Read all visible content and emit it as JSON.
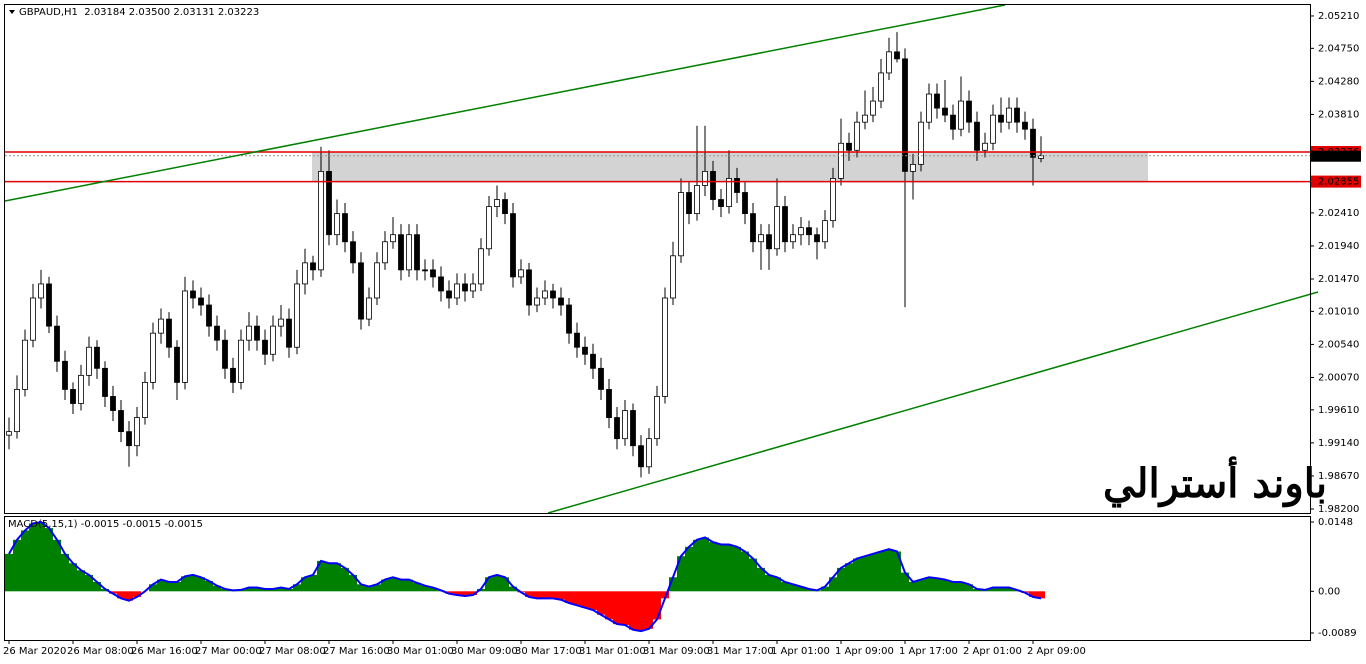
{
  "chart_data": [
    {
      "type": "candlestick",
      "title": "GBPAUD,H1  2.03184 2.03500 2.03131 2.03223",
      "annotation": "باوند أسترالي",
      "annotation_color": "#c00000",
      "ylim": [
        1.98143,
        2.05366
      ],
      "yticks": [
        {
          "value": 2.0521,
          "label": "2.05210"
        },
        {
          "value": 2.0475,
          "label": "2.04750"
        },
        {
          "value": 2.0428,
          "label": "2.04280"
        },
        {
          "value": 2.0381,
          "label": "2.03810"
        },
        {
          "value": 2.0241,
          "label": "2.02410"
        },
        {
          "value": 2.0194,
          "label": "2.01940"
        },
        {
          "value": 2.0147,
          "label": "2.01470"
        },
        {
          "value": 2.0101,
          "label": "2.01010"
        },
        {
          "value": 2.0054,
          "label": "2.00540"
        },
        {
          "value": 2.0007,
          "label": "2.00070"
        },
        {
          "value": 1.9961,
          "label": "1.99610"
        },
        {
          "value": 1.9914,
          "label": "1.99140"
        },
        {
          "value": 1.9867,
          "label": "1.98670"
        },
        {
          "value": 1.982,
          "label": "1.98200"
        }
      ],
      "hlines": [
        2.03276,
        2.02855
      ],
      "hline_color": "#e00000",
      "last_price": 2.03223,
      "zone_color": "#d3d3d3",
      "x_labels": [
        "26 Mar 2020",
        "26 Mar 08:00",
        "26 Mar 16:00",
        "27 Mar 00:00",
        "27 Mar 08:00",
        "27 Mar 16:00",
        "30 Mar 01:00",
        "30 Mar 09:00",
        "30 Mar 17:00",
        "31 Mar 01:00",
        "31 Mar 09:00",
        "31 Mar 17:00",
        "1 Apr 01:00",
        "1 Apr 09:00",
        "1 Apr 17:00",
        "2 Apr 01:00",
        "2 Apr 09:00"
      ],
      "candles": [
        [
          1.9925,
          1.995,
          1.9905,
          1.993
        ],
        [
          1.993,
          2.001,
          1.992,
          1.999
        ],
        [
          1.999,
          2.0075,
          1.998,
          2.006
        ],
        [
          2.006,
          2.014,
          2.005,
          2.012
        ],
        [
          2.012,
          2.016,
          2.0105,
          2.014
        ],
        [
          2.014,
          2.015,
          2.007,
          2.008
        ],
        [
          2.008,
          2.0095,
          2.0015,
          2.003
        ],
        [
          2.003,
          2.0045,
          1.9975,
          1.999
        ],
        [
          1.999,
          2.0,
          1.9955,
          1.997
        ],
        [
          1.997,
          2.0025,
          1.996,
          2.001
        ],
        [
          2.001,
          2.0065,
          1.9995,
          2.005
        ],
        [
          2.005,
          2.006,
          2.0005,
          2.002
        ],
        [
          2.002,
          2.003,
          1.9965,
          1.998
        ],
        [
          1.998,
          1.9995,
          1.9945,
          1.996
        ],
        [
          1.996,
          1.9975,
          1.9915,
          1.993
        ],
        [
          1.993,
          1.9945,
          1.988,
          1.991
        ],
        [
          1.991,
          1.9965,
          1.9895,
          1.995
        ],
        [
          1.995,
          2.0015,
          1.994,
          2.0
        ],
        [
          2.0,
          2.0085,
          1.999,
          2.007
        ],
        [
          2.007,
          2.0105,
          2.0055,
          2.009
        ],
        [
          2.009,
          2.01,
          2.0035,
          2.005
        ],
        [
          2.005,
          2.006,
          1.9975,
          2.0
        ],
        [
          2.0,
          2.015,
          1.999,
          2.013
        ],
        [
          2.013,
          2.0145,
          2.0105,
          2.012
        ],
        [
          2.012,
          2.0135,
          2.0095,
          2.011
        ],
        [
          2.011,
          2.0125,
          2.0065,
          2.008
        ],
        [
          2.008,
          2.0095,
          2.0045,
          2.006
        ],
        [
          2.006,
          2.0075,
          2.0005,
          2.002
        ],
        [
          2.002,
          2.0035,
          1.9985,
          2.0
        ],
        [
          2.0,
          2.0075,
          1.999,
          2.006
        ],
        [
          2.006,
          2.01,
          2.0045,
          2.008
        ],
        [
          2.008,
          2.0095,
          2.0045,
          2.006
        ],
        [
          2.006,
          2.0075,
          2.0025,
          2.004
        ],
        [
          2.004,
          2.0095,
          2.003,
          2.008
        ],
        [
          2.008,
          2.011,
          2.0065,
          2.009
        ],
        [
          2.009,
          2.0105,
          2.0035,
          2.005
        ],
        [
          2.005,
          2.016,
          2.004,
          2.014
        ],
        [
          2.014,
          2.019,
          2.0125,
          2.017
        ],
        [
          2.017,
          2.018,
          2.0145,
          2.016
        ],
        [
          2.016,
          2.0335,
          2.015,
          2.03
        ],
        [
          2.03,
          2.033,
          2.0195,
          2.021
        ],
        [
          2.021,
          2.026,
          2.0195,
          2.024
        ],
        [
          2.024,
          2.0255,
          2.0185,
          2.02
        ],
        [
          2.02,
          2.0215,
          2.0155,
          2.017
        ],
        [
          2.017,
          2.0185,
          2.0075,
          2.009
        ],
        [
          2.009,
          2.0135,
          2.008,
          2.012
        ],
        [
          2.012,
          2.0185,
          2.011,
          2.017
        ],
        [
          2.017,
          2.0215,
          2.016,
          2.02
        ],
        [
          2.02,
          2.0235,
          2.019,
          2.021
        ],
        [
          2.021,
          2.0225,
          2.0145,
          2.016
        ],
        [
          2.016,
          2.0225,
          2.015,
          2.021
        ],
        [
          2.021,
          2.0225,
          2.0145,
          2.016
        ],
        [
          2.016,
          2.0175,
          2.0145,
          2.016
        ],
        [
          2.016,
          2.0175,
          2.0135,
          2.015
        ],
        [
          2.015,
          2.0165,
          2.0115,
          2.013
        ],
        [
          2.013,
          2.0145,
          2.0105,
          2.012
        ],
        [
          2.012,
          2.0155,
          2.011,
          2.014
        ],
        [
          2.014,
          2.0155,
          2.0115,
          2.013
        ],
        [
          2.013,
          2.0155,
          2.012,
          2.014
        ],
        [
          2.014,
          2.0205,
          2.013,
          2.019
        ],
        [
          2.019,
          2.0265,
          2.018,
          2.025
        ],
        [
          2.025,
          2.028,
          2.0235,
          2.026
        ],
        [
          2.026,
          2.027,
          2.0225,
          2.024
        ],
        [
          2.024,
          2.0255,
          2.0135,
          2.015
        ],
        [
          2.015,
          2.0175,
          2.014,
          2.016
        ],
        [
          2.016,
          2.017,
          2.0095,
          2.011
        ],
        [
          2.011,
          2.0135,
          2.01,
          2.012
        ],
        [
          2.012,
          2.0145,
          2.011,
          2.013
        ],
        [
          2.013,
          2.014,
          2.0105,
          2.012
        ],
        [
          2.012,
          2.0135,
          2.0095,
          2.011
        ],
        [
          2.011,
          2.012,
          2.0055,
          2.007
        ],
        [
          2.007,
          2.0085,
          2.0035,
          2.005
        ],
        [
          2.005,
          2.0065,
          2.0025,
          2.004
        ],
        [
          2.004,
          2.0055,
          2.0005,
          2.002
        ],
        [
          2.002,
          2.0035,
          1.9975,
          1.999
        ],
        [
          1.999,
          2.0005,
          1.9935,
          1.995
        ],
        [
          1.995,
          1.9965,
          1.9905,
          1.992
        ],
        [
          1.992,
          1.9975,
          1.991,
          1.996
        ],
        [
          1.996,
          1.997,
          1.9895,
          1.991
        ],
        [
          1.991,
          1.9925,
          1.9865,
          1.988
        ],
        [
          1.988,
          1.9935,
          1.987,
          1.992
        ],
        [
          1.992,
          1.9995,
          1.991,
          1.998
        ],
        [
          1.998,
          2.0135,
          1.997,
          2.012
        ],
        [
          2.012,
          2.02,
          2.011,
          2.018
        ],
        [
          2.018,
          2.029,
          2.017,
          2.027
        ],
        [
          2.027,
          2.0285,
          2.0225,
          2.024
        ],
        [
          2.024,
          2.0365,
          2.023,
          2.028
        ],
        [
          2.028,
          2.0365,
          2.0265,
          2.03
        ],
        [
          2.03,
          2.0315,
          2.0245,
          2.026
        ],
        [
          2.026,
          2.0275,
          2.0235,
          2.025
        ],
        [
          2.025,
          2.033,
          2.024,
          2.029
        ],
        [
          2.029,
          2.0305,
          2.0255,
          2.027
        ],
        [
          2.027,
          2.0285,
          2.0225,
          2.024
        ],
        [
          2.024,
          2.0255,
          2.0185,
          2.02
        ],
        [
          2.02,
          2.0225,
          2.016,
          2.021
        ],
        [
          2.021,
          2.0225,
          2.016,
          2.019
        ],
        [
          2.019,
          2.029,
          2.018,
          2.025
        ],
        [
          2.025,
          2.0265,
          2.0185,
          2.02
        ],
        [
          2.02,
          2.0225,
          2.019,
          2.021
        ],
        [
          2.021,
          2.0235,
          2.0195,
          2.022
        ],
        [
          2.022,
          2.023,
          2.0195,
          2.021
        ],
        [
          2.021,
          2.022,
          2.0175,
          2.02
        ],
        [
          2.02,
          2.0245,
          2.019,
          2.023
        ],
        [
          2.023,
          2.0305,
          2.022,
          2.029
        ],
        [
          2.029,
          2.0375,
          2.028,
          2.034
        ],
        [
          2.034,
          2.0355,
          2.0315,
          2.033
        ],
        [
          2.033,
          2.0385,
          2.032,
          2.037
        ],
        [
          2.037,
          2.0415,
          2.036,
          2.038
        ],
        [
          2.038,
          2.042,
          2.037,
          2.04
        ],
        [
          2.04,
          2.046,
          2.039,
          2.044
        ],
        [
          2.044,
          2.049,
          2.043,
          2.047
        ],
        [
          2.047,
          2.0498,
          2.0455,
          2.046
        ],
        [
          2.046,
          2.0475,
          2.0107,
          2.03
        ],
        [
          2.03,
          2.0325,
          2.026,
          2.031
        ],
        [
          2.031,
          2.0385,
          2.03,
          2.037
        ],
        [
          2.037,
          2.0425,
          2.036,
          2.041
        ],
        [
          2.041,
          2.0425,
          2.0375,
          2.039
        ],
        [
          2.039,
          2.043,
          2.037,
          2.038
        ],
        [
          2.038,
          2.0395,
          2.0345,
          2.036
        ],
        [
          2.036,
          2.0435,
          2.035,
          2.04
        ],
        [
          2.04,
          2.0415,
          2.0355,
          2.037
        ],
        [
          2.037,
          2.0385,
          2.0315,
          2.033
        ],
        [
          2.033,
          2.0355,
          2.032,
          2.034
        ],
        [
          2.034,
          2.0395,
          2.033,
          2.038
        ],
        [
          2.038,
          2.0405,
          2.0355,
          2.037
        ],
        [
          2.037,
          2.0405,
          2.036,
          2.039
        ],
        [
          2.039,
          2.0405,
          2.0355,
          2.037
        ],
        [
          2.037,
          2.0385,
          2.0345,
          2.036
        ],
        [
          2.036,
          2.0375,
          2.028,
          2.032
        ],
        [
          2.03184,
          2.035,
          2.03131,
          2.03223
        ]
      ]
    },
    {
      "type": "macd",
      "title": "MACD(5,15,1) -0.0015 -0.0015 -0.0015",
      "ylim": [
        -0.0104,
        0.01587
      ],
      "yticks": [
        0.0148,
        {
          "value": 0,
          "label": "0.00"
        },
        -0.0089
      ],
      "positive_color": "#008000",
      "negative_color": "#ff0000",
      "line_color": "#0000ff",
      "values": [
        0.008,
        0.011,
        0.013,
        0.0145,
        0.0148,
        0.0135,
        0.011,
        0.008,
        0.006,
        0.0045,
        0.0035,
        0.002,
        0.0005,
        -0.0005,
        -0.0015,
        -0.002,
        -0.0012,
        0.0,
        0.0015,
        0.0025,
        0.002,
        0.002,
        0.0032,
        0.0035,
        0.003,
        0.0022,
        0.0012,
        0.0005,
        0.0002,
        0.0003,
        0.0008,
        0.0008,
        0.0005,
        0.0005,
        0.0008,
        0.0005,
        0.0015,
        0.003,
        0.0035,
        0.0065,
        0.006,
        0.006,
        0.005,
        0.0035,
        0.0015,
        0.001,
        0.0015,
        0.0025,
        0.003,
        0.0025,
        0.0025,
        0.0018,
        0.0012,
        0.0008,
        0.0002,
        -0.0005,
        -0.0008,
        -0.001,
        -0.0008,
        0.0005,
        0.003,
        0.0035,
        0.003,
        0.001,
        -0.0002,
        -0.0012,
        -0.0015,
        -0.0015,
        -0.0015,
        -0.0018,
        -0.0025,
        -0.003,
        -0.0035,
        -0.004,
        -0.005,
        -0.006,
        -0.007,
        -0.0072,
        -0.0082,
        -0.0085,
        -0.008,
        -0.006,
        -0.0015,
        0.003,
        0.0075,
        0.0095,
        0.011,
        0.0115,
        0.0105,
        0.01,
        0.01,
        0.0095,
        0.0085,
        0.007,
        0.005,
        0.0035,
        0.003,
        0.002,
        0.0015,
        0.001,
        0.0005,
        0.0002,
        0.001,
        0.003,
        0.005,
        0.006,
        0.007,
        0.0075,
        0.008,
        0.0085,
        0.009,
        0.0085,
        0.004,
        0.002,
        0.0025,
        0.003,
        0.0028,
        0.0025,
        0.002,
        0.002,
        0.0015,
        0.0005,
        0.0003,
        0.0008,
        0.0008,
        0.0008,
        0.0003,
        -0.0003,
        -0.0012,
        -0.0015
      ]
    }
  ]
}
